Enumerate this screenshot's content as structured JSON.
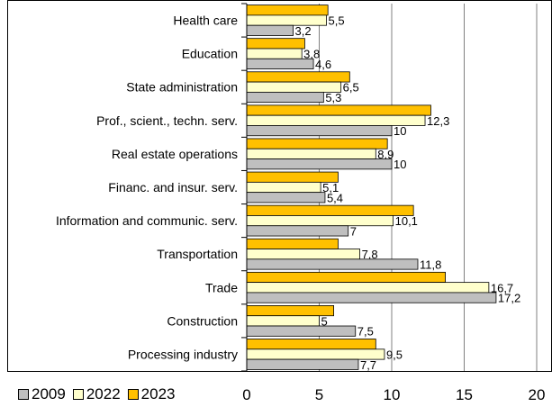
{
  "chart_data": {
    "type": "bar",
    "orientation": "horizontal",
    "categories": [
      "Health care",
      "Education",
      "State administration",
      "Prof., scient., techn. serv.",
      "Real estate operations",
      "Financ. and insur. serv.",
      "Information and communic. serv.",
      "Transportation",
      "Trade",
      "Construction",
      "Processing industry"
    ],
    "series": [
      {
        "name": "2023",
        "color": "#FFC000",
        "values": [
          5.6,
          4.0,
          7.1,
          12.7,
          9.7,
          6.3,
          11.5,
          6.3,
          13.7,
          6.0,
          8.9
        ],
        "labels": [
          "",
          "",
          "",
          "",
          "",
          "",
          "",
          "",
          "",
          "",
          ""
        ]
      },
      {
        "name": "2022",
        "color": "#FFFFCC",
        "values": [
          5.5,
          3.8,
          6.5,
          12.3,
          8.9,
          5.1,
          10.1,
          7.8,
          16.7,
          5.0,
          9.5
        ],
        "labels": [
          "5,5",
          "3,8",
          "6,5",
          "12,3",
          "8,9",
          "5,1",
          "10,1",
          "7,8",
          "16,7",
          "5",
          "9,5"
        ]
      },
      {
        "name": "2009",
        "color": "#BFBFBF",
        "values": [
          3.2,
          4.6,
          5.3,
          10.0,
          10.0,
          5.4,
          7.0,
          11.8,
          17.2,
          7.5,
          7.7
        ],
        "labels": [
          "3,2",
          "4,6",
          "5,3",
          "10",
          "10",
          "5,4",
          "7",
          "11,8",
          "17,2",
          "7,5",
          "7,7"
        ]
      }
    ],
    "xlim": [
      0,
      20
    ],
    "xticks": [
      "0",
      "5",
      "10",
      "15",
      "20"
    ],
    "grid": true,
    "legend": {
      "position": "bottom-left",
      "order": [
        "2009",
        "2022",
        "2023"
      ]
    },
    "title": "",
    "xlabel": "",
    "ylabel": ""
  }
}
